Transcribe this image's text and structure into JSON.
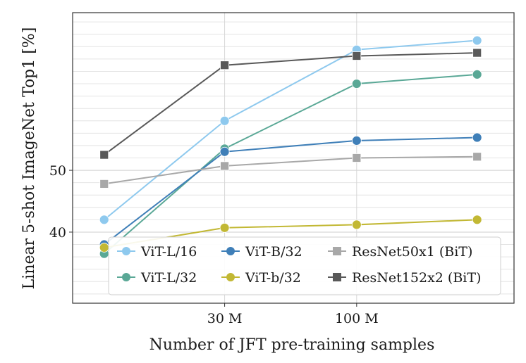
{
  "chart_data": {
    "type": "line",
    "xlabel": "Number of JFT pre-training samples",
    "ylabel": "Linear 5-shot ImageNet Top1 [%]",
    "x": [
      10,
      30,
      100,
      300
    ],
    "x_tick_labels": [
      {
        "x": 30,
        "label": "30 M"
      },
      {
        "x": 100,
        "label": "100 M"
      }
    ],
    "x_scale": "log",
    "xlim": [
      7.5,
      420
    ],
    "y_ticks": [
      40,
      50
    ],
    "ylim": [
      28.5,
      75.5
    ],
    "grid": true,
    "legend_position": "lower-right",
    "series": [
      {
        "name": "ViT-L/16",
        "color": "#8ec9ee",
        "marker": "circle",
        "values": [
          42,
          58,
          69.5,
          71
        ]
      },
      {
        "name": "ViT-L/32",
        "color": "#5aa896",
        "marker": "circle",
        "values": [
          36.5,
          53.5,
          64,
          65.5
        ]
      },
      {
        "name": "ViT-B/32",
        "color": "#3f7fb8",
        "marker": "circle",
        "values": [
          38,
          53,
          54.8,
          55.3
        ]
      },
      {
        "name": "ViT-b/32",
        "color": "#c2b834",
        "marker": "circle",
        "values": [
          37.5,
          40.7,
          41.2,
          42
        ]
      },
      {
        "name": "ResNet50x1 (BiT)",
        "color": "#a8a8a8",
        "marker": "square",
        "values": [
          47.8,
          50.7,
          52,
          52.2
        ]
      },
      {
        "name": "ResNet152x2 (BiT)",
        "color": "#595959",
        "marker": "square",
        "values": [
          52.5,
          67,
          68.5,
          69
        ]
      }
    ]
  }
}
